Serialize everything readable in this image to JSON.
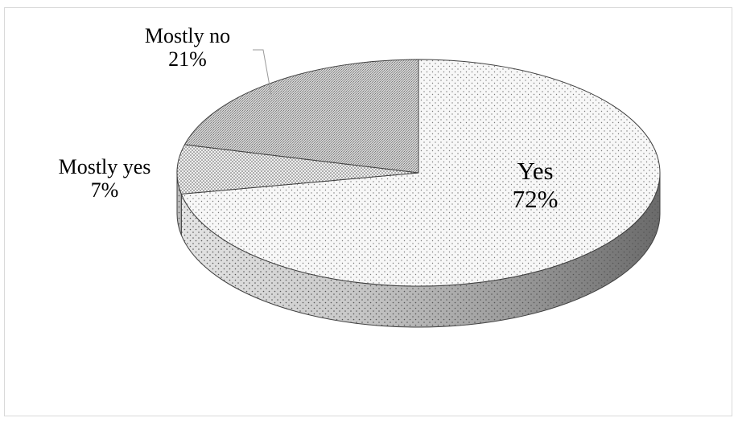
{
  "chart_data": {
    "type": "pie",
    "style": "3d",
    "title": "",
    "slices": [
      {
        "label": "Yes",
        "value": 72,
        "value_label": "72%",
        "pattern": "fine-dots-light"
      },
      {
        "label": "Mostly yes",
        "value": 7,
        "value_label": "7%",
        "pattern": "dense-dots"
      },
      {
        "label": "Mostly no",
        "value": 21,
        "value_label": "21%",
        "pattern": "grey-stipple"
      }
    ],
    "legend": "none",
    "data_labels": "outside-with-leader"
  },
  "colors": {
    "background": "#ffffff",
    "frame_border": "#d9d9d9",
    "outline": "#404040",
    "yes_fill": "#f6f6f6",
    "mostly_yes_fill": "#eaeaea",
    "mostly_no_fill": "#b9b9b9"
  }
}
